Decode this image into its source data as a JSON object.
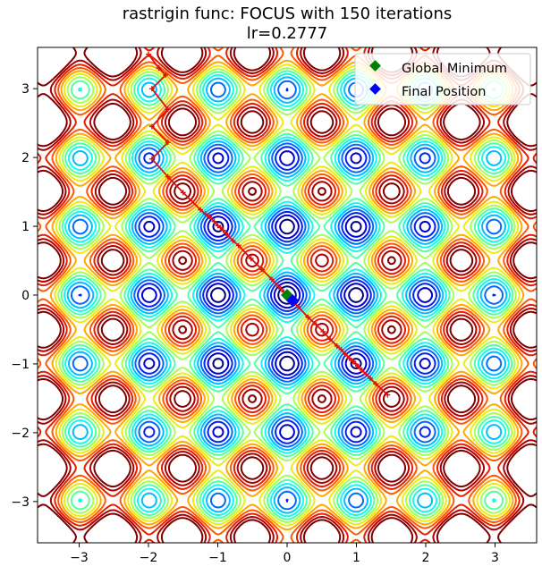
{
  "chart_data": {
    "type": "contour",
    "title_line1": "rastrigin func: FOCUS with 150 iterations",
    "title_line2": "lr=0.2777",
    "function": "rastrigin",
    "optimizer": "FOCUS",
    "iterations": 150,
    "learning_rate": 0.2777,
    "xlim": [
      -3.6,
      3.6
    ],
    "ylim": [
      -3.6,
      3.6
    ],
    "x_ticks": [
      -3,
      -2,
      -1,
      0,
      1,
      2,
      3
    ],
    "y_ticks": [
      -3,
      -2,
      -1,
      0,
      1,
      2,
      3
    ],
    "x_tick_labels": [
      "−3",
      "−2",
      "−1",
      "0",
      "1",
      "2",
      "3"
    ],
    "y_tick_labels": [
      "−3",
      "−2",
      "−1",
      "0",
      "1",
      "2",
      "3"
    ],
    "contour_levels": [
      3,
      6,
      9,
      12,
      15,
      18,
      21,
      24,
      27,
      30,
      33,
      36,
      39,
      42
    ],
    "colormap": [
      "#00007f",
      "#0000dc",
      "#0034ff",
      "#0098ff",
      "#00f8ff",
      "#4cffaa",
      "#aaff4d",
      "#ffe600",
      "#ff8200",
      "#ff2a00",
      "#b30000",
      "#7f0000"
    ],
    "path_color": "#dd1111",
    "path": [
      [
        -2.0,
        3.5
      ],
      [
        -1.85,
        3.3
      ],
      [
        -1.75,
        3.2
      ],
      [
        -1.95,
        3.0
      ],
      [
        -1.72,
        2.7
      ],
      [
        -1.95,
        2.45
      ],
      [
        -1.72,
        2.22
      ],
      [
        -1.95,
        1.98
      ],
      [
        -1.72,
        1.72
      ],
      [
        -1.5,
        1.49
      ],
      [
        -1.25,
        1.24
      ],
      [
        -1.18,
        1.18
      ],
      [
        -1.12,
        1.14
      ],
      [
        -1.05,
        1.07
      ],
      [
        -1.0,
        1.01
      ],
      [
        -0.96,
        0.98
      ],
      [
        -0.92,
        0.94
      ],
      [
        -0.86,
        0.87
      ],
      [
        -0.78,
        0.79
      ],
      [
        -0.7,
        0.72
      ],
      [
        -0.52,
        0.53
      ],
      [
        -0.36,
        0.37
      ],
      [
        -0.22,
        0.23
      ],
      [
        -0.12,
        0.12
      ],
      [
        -0.05,
        0.05
      ],
      [
        0.02,
        -0.02
      ],
      [
        0.08,
        -0.08
      ],
      [
        0.16,
        -0.17
      ],
      [
        0.3,
        -0.32
      ],
      [
        0.42,
        -0.43
      ],
      [
        0.52,
        -0.53
      ],
      [
        0.62,
        -0.64
      ],
      [
        0.72,
        -0.74
      ],
      [
        0.78,
        -0.79
      ],
      [
        0.84,
        -0.86
      ],
      [
        0.9,
        -0.92
      ],
      [
        0.95,
        -0.96
      ],
      [
        0.99,
        -1.0
      ],
      [
        1.03,
        -1.04
      ],
      [
        1.08,
        -1.09
      ],
      [
        1.14,
        -1.15
      ],
      [
        1.2,
        -1.21
      ],
      [
        1.28,
        -1.29
      ],
      [
        1.45,
        -1.45
      ]
    ],
    "global_minimum": {
      "x": 0.0,
      "y": 0.0,
      "color": "#008000",
      "label": "Global Minimum"
    },
    "final_position": {
      "x": 0.08,
      "y": -0.08,
      "color": "#0000ff",
      "label": "Final Position"
    },
    "legend_position": "upper-right"
  }
}
